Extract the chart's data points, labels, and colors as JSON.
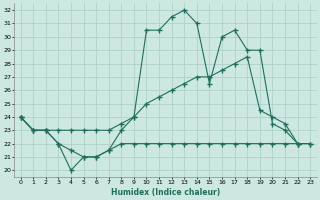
{
  "xlabel": "Humidex (Indice chaleur)",
  "bg_color": "#cde8e0",
  "line_color": "#1e6e5e",
  "grid_color": "#aacec6",
  "xlim": [
    -0.5,
    23.5
  ],
  "ylim": [
    19.5,
    32.5
  ],
  "xticks": [
    0,
    1,
    2,
    3,
    4,
    5,
    6,
    7,
    8,
    9,
    10,
    11,
    12,
    13,
    14,
    15,
    16,
    17,
    18,
    19,
    20,
    21,
    22,
    23
  ],
  "yticks": [
    20,
    21,
    22,
    23,
    24,
    25,
    26,
    27,
    28,
    29,
    30,
    31,
    32
  ],
  "line1_x": [
    0,
    1,
    2,
    3,
    4,
    5,
    6,
    7,
    8,
    9,
    10,
    11,
    12,
    13,
    14,
    15,
    16,
    17,
    18,
    19,
    20,
    21,
    22
  ],
  "line1_y": [
    24,
    23,
    23,
    22,
    20,
    21,
    21,
    21.5,
    23,
    24,
    30.5,
    30.5,
    31.5,
    32,
    31,
    26.5,
    30,
    30.5,
    29,
    29,
    23.5,
    23,
    22
  ],
  "line2_x": [
    0,
    1,
    2,
    3,
    4,
    5,
    6,
    7,
    8,
    9,
    10,
    11,
    12,
    13,
    14,
    15,
    16,
    17,
    18,
    19,
    20,
    21,
    22,
    23
  ],
  "line2_y": [
    24,
    23,
    23,
    23,
    23,
    23,
    23,
    23,
    23.5,
    24,
    25,
    25.5,
    26,
    26.5,
    27,
    27,
    27.5,
    28,
    28.5,
    24.5,
    24,
    23.5,
    22,
    22
  ],
  "line3_x": [
    0,
    1,
    2,
    3,
    4,
    5,
    6,
    7,
    8,
    9,
    10,
    11,
    12,
    13,
    14,
    15,
    16,
    17,
    18,
    19,
    20,
    21,
    22,
    23
  ],
  "line3_y": [
    24,
    23,
    23,
    22,
    21.5,
    21,
    21,
    21.5,
    22,
    22,
    22,
    22,
    22,
    22,
    22,
    22,
    22,
    22,
    22,
    22,
    22,
    22,
    22,
    22
  ]
}
